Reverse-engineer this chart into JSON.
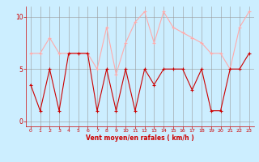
{
  "x": [
    0,
    1,
    2,
    3,
    4,
    5,
    6,
    7,
    8,
    9,
    10,
    11,
    12,
    13,
    14,
    15,
    16,
    17,
    18,
    19,
    20,
    21,
    22,
    23
  ],
  "y_mean": [
    3.5,
    1,
    5,
    1,
    6.5,
    6.5,
    6.5,
    1,
    5,
    1,
    5,
    1,
    5,
    3.5,
    5,
    5,
    5,
    3,
    5,
    1,
    1,
    5,
    5,
    6.5
  ],
  "y_gust": [
    6.5,
    6.5,
    8,
    6.5,
    6.5,
    6.5,
    6.5,
    5,
    9,
    4.5,
    7.5,
    9.5,
    10.5,
    7.5,
    10.5,
    9,
    8.5,
    8,
    7.5,
    6.5,
    6.5,
    5,
    9,
    10.5
  ],
  "bg_color": "#cceeff",
  "grid_color": "#999999",
  "line_color_mean": "#cc0000",
  "line_color_gust": "#ffaaaa",
  "xlabel": "Vent moyen/en rafales ( km/h )",
  "xlabel_color": "#cc0000",
  "tick_color": "#cc0000",
  "xlim": [
    -0.5,
    23.5
  ],
  "ylim": [
    -0.5,
    11.0
  ],
  "yticks": [
    0,
    5,
    10
  ],
  "xticks": [
    0,
    1,
    2,
    3,
    4,
    5,
    6,
    7,
    8,
    9,
    10,
    11,
    12,
    13,
    14,
    15,
    16,
    17,
    18,
    19,
    20,
    21,
    22,
    23
  ],
  "marker_size": 2.5,
  "line_width": 0.8
}
